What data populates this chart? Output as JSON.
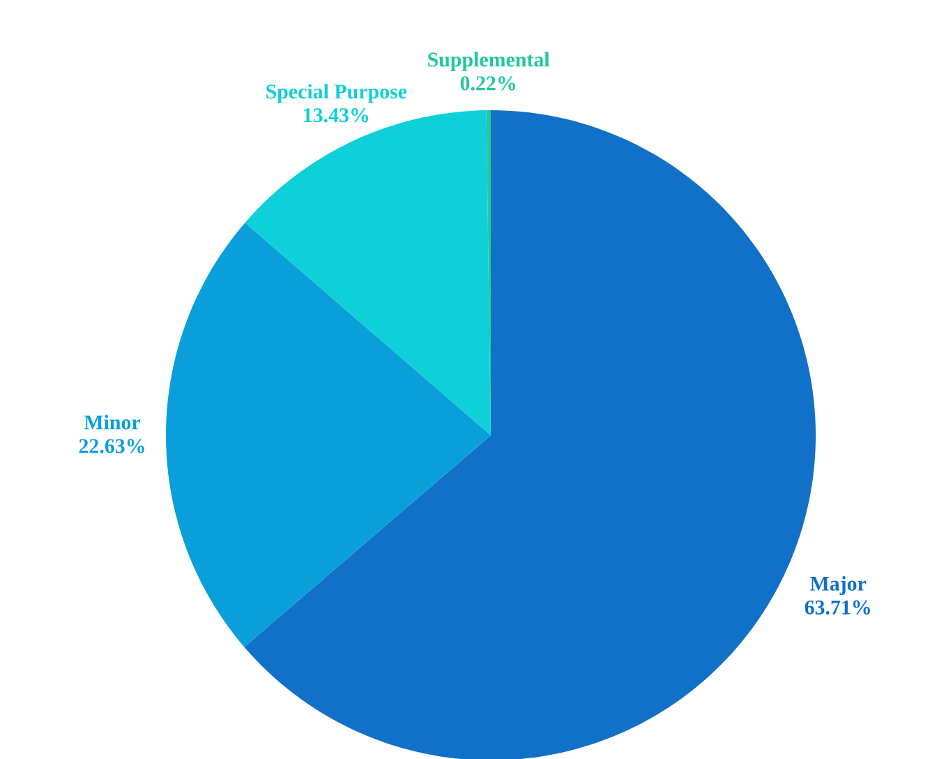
{
  "chart_data": {
    "type": "pie",
    "categories": [
      "Major",
      "Minor",
      "Special Purpose",
      "Supplemental"
    ],
    "values": [
      63.71,
      22.63,
      13.43,
      0.22
    ],
    "value_labels": [
      "63.71%",
      "22.63%",
      "13.43%",
      "0.22%"
    ],
    "colors": [
      "#1170c8",
      "#0a9fda",
      "#0fd0d8",
      "#20c89c"
    ]
  }
}
